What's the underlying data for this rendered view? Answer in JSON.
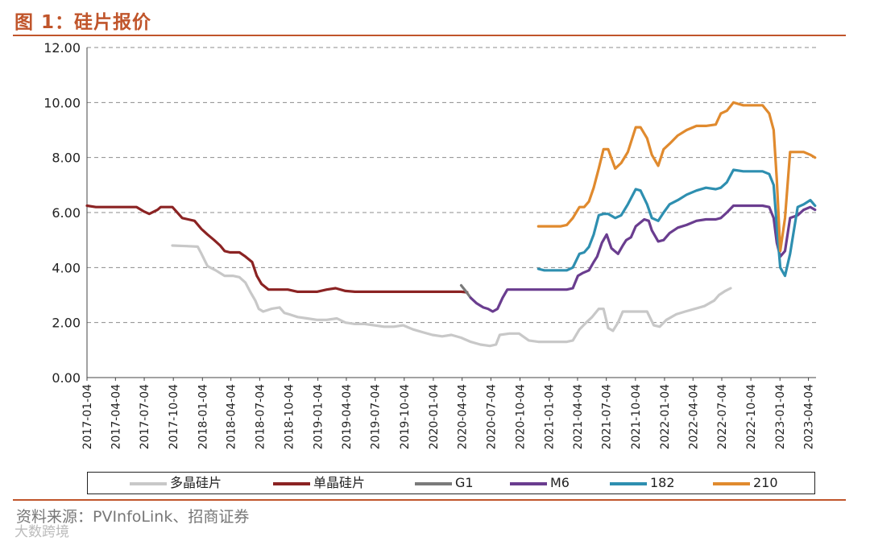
{
  "header": {
    "title": "图 1：硅片报价"
  },
  "footer": {
    "source": "资料来源：PVInfoLink、招商证券",
    "watermark": "大数跨境"
  },
  "chart_data": {
    "type": "line",
    "title": "",
    "ylim": [
      0,
      12
    ],
    "y_ticks": [
      "0.00",
      "2.00",
      "4.00",
      "6.00",
      "8.00",
      "10.00",
      "12.00"
    ],
    "x_ticks": [
      "2017-01-04",
      "2017-04-04",
      "2017-07-04",
      "2017-10-04",
      "2018-01-04",
      "2018-04-04",
      "2018-07-04",
      "2018-10-04",
      "2019-01-04",
      "2019-04-04",
      "2019-07-04",
      "2019-10-04",
      "2020-01-04",
      "2020-04-04",
      "2020-07-04",
      "2020-10-04",
      "2021-01-04",
      "2021-04-04",
      "2021-07-04",
      "2021-10-04",
      "2022-01-04",
      "2022-04-04",
      "2022-07-04",
      "2022-10-04",
      "2023-01-04",
      "2023-04-04"
    ],
    "grid": "horizontal dashed",
    "legend_position": "bottom",
    "series": [
      {
        "name": "多晶硅片",
        "color": "#c8c8c8",
        "x": [
          "2017-10-01",
          "2017-11-15",
          "2017-12-20",
          "2018-01-01",
          "2018-01-20",
          "2018-02-15",
          "2018-03-15",
          "2018-04-10",
          "2018-05-01",
          "2018-05-20",
          "2018-06-05",
          "2018-06-20",
          "2018-07-01",
          "2018-07-15",
          "2018-08-10",
          "2018-09-05",
          "2018-09-20",
          "2018-10-05",
          "2018-11-01",
          "2018-12-01",
          "2019-01-01",
          "2019-02-01",
          "2019-03-05",
          "2019-04-01",
          "2019-05-01",
          "2019-06-01",
          "2019-07-01",
          "2019-08-01",
          "2019-09-01",
          "2019-10-01",
          "2019-11-01",
          "2019-12-01",
          "2020-01-01",
          "2020-02-01",
          "2020-03-01",
          "2020-04-01",
          "2020-05-01",
          "2020-06-01",
          "2020-07-01",
          "2020-07-20",
          "2020-08-01",
          "2020-09-01",
          "2020-10-01",
          "2020-11-01",
          "2020-12-01",
          "2021-01-01",
          "2021-02-01",
          "2021-03-01",
          "2021-03-20",
          "2021-04-10",
          "2021-05-01",
          "2021-05-20",
          "2021-06-10",
          "2021-06-25",
          "2021-07-10",
          "2021-07-25",
          "2021-08-10",
          "2021-08-25",
          "2021-09-10",
          "2021-10-10",
          "2021-11-10",
          "2021-12-01",
          "2021-12-20",
          "2022-01-10",
          "2022-02-10",
          "2022-03-10",
          "2022-04-10",
          "2022-05-10",
          "2022-06-10",
          "2022-06-25",
          "2022-07-15",
          "2022-08-01"
        ],
        "y": [
          4.8,
          4.78,
          4.76,
          4.5,
          4.05,
          3.9,
          3.7,
          3.7,
          3.65,
          3.45,
          3.1,
          2.8,
          2.5,
          2.4,
          2.5,
          2.55,
          2.35,
          2.3,
          2.2,
          2.15,
          2.1,
          2.1,
          2.15,
          2.0,
          1.95,
          1.95,
          1.9,
          1.85,
          1.85,
          1.9,
          1.75,
          1.65,
          1.55,
          1.5,
          1.55,
          1.45,
          1.3,
          1.2,
          1.15,
          1.2,
          1.55,
          1.6,
          1.6,
          1.35,
          1.3,
          1.3,
          1.3,
          1.3,
          1.35,
          1.75,
          2.0,
          2.2,
          2.5,
          2.5,
          1.8,
          1.7,
          2.0,
          2.4,
          2.4,
          2.4,
          2.4,
          1.9,
          1.85,
          2.1,
          2.3,
          2.4,
          2.5,
          2.6,
          2.8,
          3.0,
          3.15,
          3.25
        ]
      },
      {
        "name": "单晶硅片",
        "color": "#8b2323",
        "x": [
          "2017-01-04",
          "2017-02-01",
          "2017-03-01",
          "2017-04-01",
          "2017-05-01",
          "2017-06-10",
          "2017-07-01",
          "2017-07-20",
          "2017-08-15",
          "2017-08-25",
          "2017-10-01",
          "2017-11-01",
          "2017-11-20",
          "2017-12-10",
          "2018-01-01",
          "2018-01-20",
          "2018-02-10",
          "2018-03-01",
          "2018-03-15",
          "2018-04-01",
          "2018-05-01",
          "2018-05-20",
          "2018-06-10",
          "2018-06-25",
          "2018-07-10",
          "2018-08-01",
          "2018-09-01",
          "2018-10-01",
          "2018-11-01",
          "2018-12-01",
          "2019-01-01",
          "2019-02-01",
          "2019-03-01",
          "2019-04-01",
          "2019-05-01",
          "2019-06-01",
          "2019-08-01",
          "2019-10-01",
          "2019-12-01",
          "2020-02-01",
          "2020-04-01",
          "2020-04-20"
        ],
        "y": [
          6.25,
          6.2,
          6.2,
          6.2,
          6.2,
          6.2,
          6.05,
          5.95,
          6.1,
          6.2,
          6.2,
          5.8,
          5.75,
          5.7,
          5.4,
          5.2,
          5.0,
          4.8,
          4.6,
          4.55,
          4.55,
          4.4,
          4.2,
          3.7,
          3.4,
          3.2,
          3.2,
          3.2,
          3.12,
          3.12,
          3.12,
          3.2,
          3.25,
          3.15,
          3.12,
          3.12,
          3.12,
          3.12,
          3.12,
          3.12,
          3.12,
          3.1
        ]
      },
      {
        "name": "G1",
        "color": "#7a7a7a",
        "x": [
          "2020-04-01",
          "2020-04-15",
          "2020-05-01"
        ],
        "y": [
          3.35,
          3.15,
          2.9
        ]
      },
      {
        "name": "M6",
        "color": "#6a3d8f",
        "x": [
          "2020-05-01",
          "2020-05-20",
          "2020-06-10",
          "2020-06-25",
          "2020-07-10",
          "2020-07-25",
          "2020-08-10",
          "2020-08-25",
          "2020-09-10",
          "2020-10-10",
          "2020-11-10",
          "2020-12-10",
          "2021-01-10",
          "2021-02-10",
          "2021-03-01",
          "2021-03-20",
          "2021-04-05",
          "2021-04-20",
          "2021-05-10",
          "2021-05-25",
          "2021-06-05",
          "2021-06-20",
          "2021-07-05",
          "2021-07-20",
          "2021-08-10",
          "2021-08-25",
          "2021-09-05",
          "2021-09-20",
          "2021-10-05",
          "2021-11-01",
          "2021-11-15",
          "2021-11-25",
          "2021-12-15",
          "2022-01-01",
          "2022-01-20",
          "2022-02-15",
          "2022-03-15",
          "2022-04-15",
          "2022-05-15",
          "2022-06-15",
          "2022-07-01",
          "2022-07-20",
          "2022-08-10",
          "2022-09-10",
          "2022-10-10",
          "2022-11-10",
          "2022-12-01",
          "2022-12-15",
          "2022-12-25",
          "2023-01-05",
          "2023-01-20",
          "2023-02-05",
          "2023-03-01",
          "2023-03-20",
          "2023-04-10",
          "2023-04-25"
        ],
        "y": [
          2.9,
          2.7,
          2.55,
          2.5,
          2.4,
          2.5,
          2.9,
          3.2,
          3.2,
          3.2,
          3.2,
          3.2,
          3.2,
          3.2,
          3.2,
          3.25,
          3.7,
          3.8,
          3.9,
          4.2,
          4.4,
          4.9,
          5.2,
          4.7,
          4.5,
          4.8,
          5.0,
          5.1,
          5.5,
          5.75,
          5.7,
          5.35,
          4.95,
          5.0,
          5.25,
          5.45,
          5.55,
          5.7,
          5.75,
          5.75,
          5.8,
          6.0,
          6.25,
          6.25,
          6.25,
          6.25,
          6.2,
          5.8,
          4.9,
          4.4,
          4.6,
          5.8,
          5.9,
          6.1,
          6.2,
          6.1
        ]
      },
      {
        "name": "182",
        "color": "#2e8fb0",
        "x": [
          "2020-12-01",
          "2020-12-20",
          "2021-01-10",
          "2021-02-10",
          "2021-03-01",
          "2021-03-20",
          "2021-04-10",
          "2021-04-25",
          "2021-05-10",
          "2021-05-25",
          "2021-06-10",
          "2021-06-25",
          "2021-07-10",
          "2021-08-01",
          "2021-08-20",
          "2021-09-10",
          "2021-10-05",
          "2021-10-20",
          "2021-11-10",
          "2021-11-25",
          "2021-12-15",
          "2022-01-01",
          "2022-01-20",
          "2022-02-15",
          "2022-03-15",
          "2022-04-15",
          "2022-05-15",
          "2022-06-15",
          "2022-07-01",
          "2022-07-20",
          "2022-08-10",
          "2022-09-10",
          "2022-10-10",
          "2022-11-10",
          "2022-12-01",
          "2022-12-15",
          "2022-12-25",
          "2023-01-05",
          "2023-01-20",
          "2023-02-05",
          "2023-03-01",
          "2023-03-20",
          "2023-04-10",
          "2023-04-25"
        ],
        "y": [
          3.95,
          3.9,
          3.9,
          3.9,
          3.9,
          4.0,
          4.5,
          4.55,
          4.75,
          5.2,
          5.9,
          5.95,
          5.95,
          5.8,
          5.9,
          6.3,
          6.85,
          6.8,
          6.3,
          5.8,
          5.7,
          6.0,
          6.3,
          6.45,
          6.65,
          6.8,
          6.9,
          6.85,
          6.9,
          7.1,
          7.55,
          7.5,
          7.5,
          7.5,
          7.4,
          7.0,
          5.5,
          4.0,
          3.7,
          4.5,
          6.2,
          6.3,
          6.45,
          6.25
        ]
      },
      {
        "name": "210",
        "color": "#e08a2e",
        "x": [
          "2020-12-01",
          "2020-12-20",
          "2021-01-10",
          "2021-02-10",
          "2021-03-01",
          "2021-03-20",
          "2021-04-10",
          "2021-04-25",
          "2021-05-10",
          "2021-05-25",
          "2021-06-10",
          "2021-06-25",
          "2021-07-10",
          "2021-08-01",
          "2021-08-20",
          "2021-09-10",
          "2021-10-05",
          "2021-10-20",
          "2021-11-10",
          "2021-11-25",
          "2021-12-15",
          "2022-01-01",
          "2022-01-20",
          "2022-02-15",
          "2022-03-15",
          "2022-04-15",
          "2022-05-15",
          "2022-06-15",
          "2022-07-01",
          "2022-07-20",
          "2022-08-10",
          "2022-09-10",
          "2022-10-10",
          "2022-11-10",
          "2022-12-01",
          "2022-12-15",
          "2022-12-25",
          "2023-01-05",
          "2023-01-20",
          "2023-02-05",
          "2023-03-01",
          "2023-03-20",
          "2023-04-10",
          "2023-04-25"
        ],
        "y": [
          5.5,
          5.5,
          5.5,
          5.5,
          5.55,
          5.8,
          6.2,
          6.2,
          6.4,
          6.9,
          7.6,
          8.3,
          8.3,
          7.6,
          7.8,
          8.2,
          9.1,
          9.1,
          8.7,
          8.1,
          7.7,
          8.3,
          8.5,
          8.8,
          9.0,
          9.15,
          9.15,
          9.2,
          9.6,
          9.7,
          10.0,
          9.9,
          9.9,
          9.9,
          9.6,
          9.0,
          7.2,
          4.6,
          5.8,
          8.2,
          8.2,
          8.2,
          8.1,
          8.0
        ]
      }
    ]
  }
}
